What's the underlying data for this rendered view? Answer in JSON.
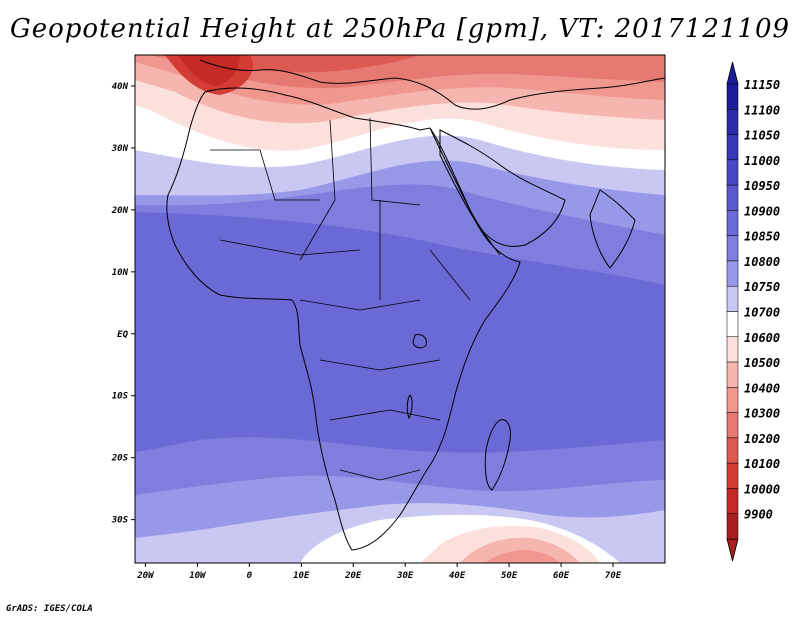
{
  "title": "Geopotential Height at 250hPa [gpm], VT: 2017121109",
  "footer": "GrADS: IGES/COLA",
  "map": {
    "lon_ticks": [
      "20W",
      "10W",
      "0",
      "10E",
      "20E",
      "30E",
      "40E",
      "50E",
      "60E",
      "70E"
    ],
    "lat_ticks": [
      "40N",
      "30N",
      "20N",
      "10N",
      "EQ",
      "10S",
      "20S",
      "30S"
    ],
    "lon_range": [
      -22,
      80
    ],
    "lat_range": [
      -37,
      45
    ]
  },
  "colorbar": {
    "labels": [
      "11150",
      "11100",
      "11050",
      "11000",
      "10950",
      "10900",
      "10850",
      "10800",
      "10750",
      "10700",
      "10600",
      "10500",
      "10400",
      "10300",
      "10200",
      "10100",
      "10000",
      "9900"
    ],
    "colors": [
      "#1d1d99",
      "#2c2ca8",
      "#3939b8",
      "#4848c4",
      "#5a5acc",
      "#6a6ad6",
      "#7e7ede",
      "#9898e8",
      "#c8c8f2",
      "#ffffff",
      "#fce0dc",
      "#f6b6b0",
      "#f09890",
      "#e67a72",
      "#dc5a52",
      "#d43c36",
      "#c42a26",
      "#a81e1e"
    ]
  },
  "colors": {
    "deep_red": "#c83030",
    "white_band": "#ffffff",
    "blue_main": "#6a6ad6"
  }
}
